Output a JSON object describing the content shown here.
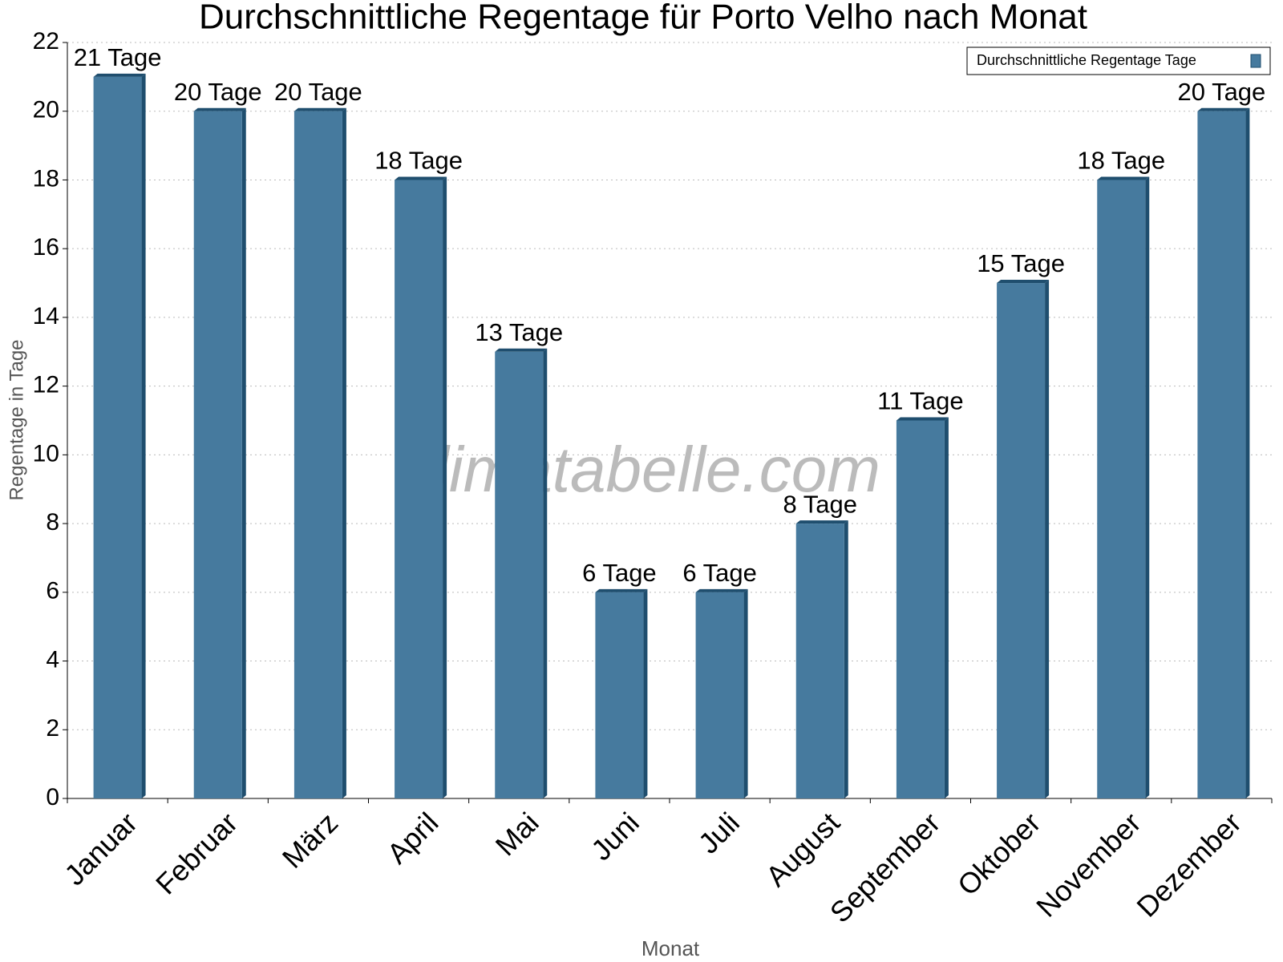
{
  "chart_data": {
    "type": "bar",
    "title": "Durchschnittliche Regentage für Porto Velho nach Monat",
    "x_label": "Monat",
    "y_label": "Regentage in Tage",
    "watermark": "klimatabelle.com",
    "categories": [
      "Januar",
      "Februar",
      "März",
      "April",
      "Mai",
      "Juni",
      "Juli",
      "August",
      "September",
      "Oktober",
      "November",
      "Dezember"
    ],
    "series": [
      {
        "name": "Durchschnittliche Regentage Tage",
        "color": "#467a9e",
        "values": [
          21,
          20,
          20,
          18,
          13,
          6,
          6,
          8,
          11,
          15,
          18,
          20
        ],
        "value_labels": [
          "21 Tage",
          "20 Tage",
          "20 Tage",
          "18 Tage",
          "13 Tage",
          "6 Tage",
          "6 Tage",
          "8 Tage",
          "11 Tage",
          "15 Tage",
          "18 Tage",
          "20 Tage"
        ]
      }
    ],
    "ylim": [
      0,
      22
    ],
    "yticks": [
      0,
      2,
      4,
      6,
      8,
      10,
      12,
      14,
      16,
      18,
      20,
      22
    ],
    "grid": true,
    "legend": "top-right"
  }
}
